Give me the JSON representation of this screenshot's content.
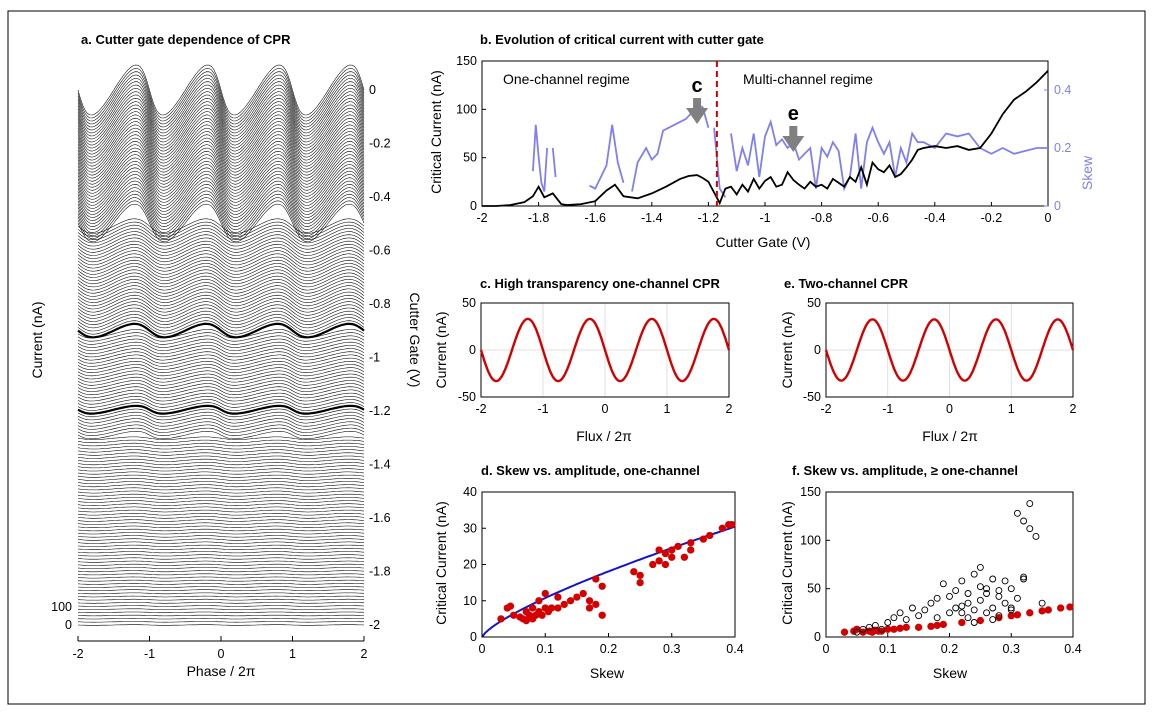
{
  "colors": {
    "accent_red": "#d40000",
    "skew_blue": "#7f7ff2",
    "fit_blue": "#1414c8",
    "frame": "#000000",
    "grey_arrow": "#808080"
  },
  "chart_data": [
    {
      "id": "a",
      "type": "line",
      "title": "a. Cutter gate dependence of CPR",
      "xlabel": "Phase / 2π",
      "ylabel": "Current (nA)",
      "y2label": "Cutter Gate (V)",
      "xlim": [
        -2,
        2
      ],
      "xticks": [
        "-2",
        "-1",
        "0",
        "1",
        "2"
      ],
      "gate_ticks": [
        "0",
        "-0.2",
        "-0.4",
        "-0.6",
        "-0.8",
        "-1",
        "-1.2",
        "-1.4",
        "-1.6",
        "-1.8",
        "-2"
      ],
      "scale_ticks": [
        "100",
        "0"
      ],
      "gate_range": [
        -2,
        0
      ],
      "trace_count": 170,
      "highlighted_gates": [
        -0.9,
        -1.2
      ]
    },
    {
      "id": "b",
      "type": "line",
      "title": "b. Evolution of critical current with cutter gate",
      "xlabel": "Cutter Gate (V)",
      "ylabel": "Critical Current (nA)",
      "y2label": "Skew",
      "xlim": [
        -2,
        0
      ],
      "ylim": [
        0,
        150
      ],
      "y2lim": [
        0,
        0.5
      ],
      "xticks": [
        "-2",
        "-1.8",
        "-1.6",
        "-1.4",
        "-1.2",
        "-1",
        "-0.8",
        "-0.6",
        "-0.4",
        "-0.2",
        "0"
      ],
      "yticks": [
        "0",
        "50",
        "100",
        "150"
      ],
      "y2ticks": [
        "0",
        "0.2",
        "0.4"
      ],
      "divider_x": -1.17,
      "annotations": {
        "left_regime": "One-channel regime",
        "right_regime": "Multi-channel regime",
        "marker_c": "c",
        "marker_e": "e",
        "marker_c_x": -1.24,
        "marker_e_x": -0.9
      },
      "series": [
        {
          "name": "Critical current",
          "x": [
            -2,
            -1.95,
            -1.9,
            -1.85,
            -1.82,
            -1.8,
            -1.78,
            -1.75,
            -1.72,
            -1.7,
            -1.65,
            -1.6,
            -1.56,
            -1.53,
            -1.5,
            -1.45,
            -1.4,
            -1.35,
            -1.3,
            -1.27,
            -1.24,
            -1.22,
            -1.2,
            -1.18,
            -1.16,
            -1.14,
            -1.12,
            -1.1,
            -1.08,
            -1.06,
            -1.04,
            -1.02,
            -1.0,
            -0.98,
            -0.96,
            -0.94,
            -0.92,
            -0.9,
            -0.88,
            -0.86,
            -0.84,
            -0.82,
            -0.8,
            -0.78,
            -0.76,
            -0.74,
            -0.72,
            -0.7,
            -0.68,
            -0.66,
            -0.64,
            -0.62,
            -0.6,
            -0.58,
            -0.56,
            -0.54,
            -0.52,
            -0.5,
            -0.48,
            -0.46,
            -0.44,
            -0.4,
            -0.36,
            -0.32,
            -0.28,
            -0.24,
            -0.2,
            -0.16,
            -0.12,
            -0.08,
            -0.04,
            0
          ],
          "values": [
            0,
            0,
            1,
            4,
            10,
            20,
            9,
            13,
            2,
            1,
            2,
            5,
            16,
            22,
            10,
            8,
            13,
            20,
            28,
            31,
            32,
            29,
            25,
            14,
            3,
            18,
            20,
            12,
            22,
            15,
            28,
            18,
            26,
            30,
            20,
            22,
            35,
            27,
            22,
            18,
            25,
            20,
            22,
            18,
            28,
            24,
            20,
            30,
            25,
            40,
            22,
            45,
            38,
            35,
            42,
            30,
            33,
            40,
            48,
            58,
            60,
            62,
            60,
            62,
            58,
            60,
            75,
            95,
            110,
            118,
            128,
            140
          ]
        },
        {
          "name": "Skew",
          "segments": [
            {
              "x": [
                -1.82,
                -1.81,
                -1.8,
                -1.79,
                -1.78,
                -1.77
              ],
              "values": [
                0.12,
                0.28,
                0.17,
                0.08,
                0.05,
                0.2
              ]
            },
            {
              "x": [
                -1.75,
                -1.74
              ],
              "values": [
                0.2,
                0.1
              ]
            },
            {
              "x": [
                -1.62,
                -1.6,
                -1.58,
                -1.56,
                -1.54,
                -1.52,
                -1.5
              ],
              "values": [
                0.07,
                0.06,
                0.1,
                0.14,
                0.28,
                0.15,
                0.08
              ]
            },
            {
              "x": [
                -1.47,
                -1.45,
                -1.42,
                -1.4,
                -1.38,
                -1.36,
                -1.34,
                -1.32,
                -1.3,
                -1.28,
                -1.26,
                -1.24,
                -1.22,
                -1.2
              ],
              "values": [
                0.05,
                0.15,
                0.2,
                0.16,
                0.18,
                0.26,
                0.27,
                0.28,
                0.29,
                0.3,
                0.32,
                0.35,
                0.34,
                0.27
              ]
            },
            {
              "x": [
                -1.18,
                -1.16,
                -1.14
              ],
              "values": [
                0.27,
                0.06,
                0.03
              ]
            },
            {
              "x": [
                -1.12,
                -1.1,
                -1.08,
                -1.06,
                -1.04,
                -1.02,
                -1.0,
                -0.98,
                -0.96,
                -0.94,
                -0.92,
                -0.9,
                -0.88,
                -0.86,
                -0.84,
                -0.82,
                -0.8,
                -0.78,
                -0.76,
                -0.74,
                -0.72,
                -0.7,
                -0.68,
                -0.66,
                -0.64,
                -0.62,
                -0.6,
                -0.58,
                -0.56,
                -0.54,
                -0.52,
                -0.5,
                -0.48,
                -0.46,
                -0.44,
                -0.4,
                -0.36,
                -0.32,
                -0.28,
                -0.24,
                -0.2,
                -0.16,
                -0.12,
                -0.08,
                -0.04,
                0
              ],
              "values": [
                0.25,
                0.12,
                0.2,
                0.14,
                0.25,
                0.1,
                0.24,
                0.29,
                0.21,
                0.23,
                0.2,
                0.22,
                0.16,
                0.18,
                0.2,
                0.06,
                0.2,
                0.17,
                0.22,
                0.19,
                0.06,
                0.1,
                0.25,
                0.06,
                0.22,
                0.27,
                0.22,
                0.18,
                0.22,
                0.1,
                0.2,
                0.15,
                0.25,
                0.22,
                0.22,
                0.2,
                0.25,
                0.24,
                0.25,
                0.2,
                0.18,
                0.2,
                0.18,
                0.19,
                0.2,
                0.2
              ]
            }
          ]
        }
      ]
    },
    {
      "id": "c",
      "type": "line",
      "title": "c. High transparency one-channel CPR",
      "xlabel": "Flux / 2π",
      "ylabel": "Current (nA)",
      "xlim": [
        -2,
        2
      ],
      "ylim": [
        -50,
        50
      ],
      "xticks": [
        "-2",
        "-1",
        "0",
        "1",
        "2"
      ],
      "yticks": [
        "50",
        "0",
        "-50"
      ],
      "amplitude": 32,
      "skew": 0.36
    },
    {
      "id": "e",
      "type": "line",
      "title": "e. Two-channel CPR",
      "xlabel": "Flux / 2π",
      "ylabel": "Current (nA)",
      "xlim": [
        -2,
        2
      ],
      "ylim": [
        -50,
        50
      ],
      "xticks": [
        "-2",
        "-1",
        "0",
        "1",
        "2"
      ],
      "yticks": [
        "50",
        "0",
        "-50"
      ],
      "amplitude": 32,
      "skew": 0.26
    },
    {
      "id": "d",
      "type": "scatter",
      "title": "d. Skew vs. amplitude, one-channel",
      "xlabel": "Skew",
      "ylabel": "Critical Current (nA)",
      "xlim": [
        0,
        0.4
      ],
      "ylim": [
        0,
        40
      ],
      "xticks": [
        "0",
        "0.1",
        "0.2",
        "0.3",
        "0.4"
      ],
      "yticks": [
        "0",
        "10",
        "20",
        "30",
        "40"
      ],
      "fit": {
        "name": "fit",
        "form": "I = 60.5 * s^0.75"
      },
      "series": [
        {
          "name": "one-channel",
          "x": [
            0.03,
            0.04,
            0.045,
            0.05,
            0.06,
            0.065,
            0.07,
            0.07,
            0.075,
            0.08,
            0.08,
            0.085,
            0.09,
            0.09,
            0.095,
            0.1,
            0.1,
            0.105,
            0.11,
            0.12,
            0.12,
            0.13,
            0.14,
            0.15,
            0.16,
            0.17,
            0.17,
            0.18,
            0.18,
            0.19,
            0.19,
            0.24,
            0.25,
            0.25,
            0.27,
            0.28,
            0.28,
            0.29,
            0.29,
            0.3,
            0.3,
            0.31,
            0.32,
            0.33,
            0.33,
            0.35,
            0.36,
            0.38,
            0.39,
            0.395
          ],
          "values": [
            5,
            8,
            8.5,
            6,
            5.5,
            5,
            7,
            4.5,
            6,
            5,
            8,
            6,
            7,
            10,
            6,
            8,
            12,
            7,
            8,
            8,
            11,
            9,
            10,
            11,
            12,
            8,
            10,
            9,
            16,
            14,
            6,
            18,
            17,
            15,
            20,
            24,
            21,
            20,
            23,
            22,
            24,
            25,
            22,
            24,
            26,
            27,
            28,
            30,
            31,
            31
          ]
        }
      ]
    },
    {
      "id": "f",
      "type": "scatter",
      "title": "f. Skew vs. amplitude, ≥ one-channel",
      "xlabel": "Skew",
      "ylabel": "Critical Current (nA)",
      "xlim": [
        0,
        0.4
      ],
      "ylim": [
        0,
        150
      ],
      "xticks": [
        "0",
        "0.1",
        "0.2",
        "0.3",
        "0.4"
      ],
      "yticks": [
        "0",
        "50",
        "100",
        "150"
      ],
      "series": [
        {
          "name": "one-channel",
          "x": [
            0.03,
            0.045,
            0.05,
            0.06,
            0.07,
            0.075,
            0.08,
            0.085,
            0.09,
            0.1,
            0.11,
            0.12,
            0.13,
            0.15,
            0.17,
            0.18,
            0.19,
            0.22,
            0.25,
            0.28,
            0.3,
            0.31,
            0.33,
            0.35,
            0.36,
            0.38,
            0.395
          ],
          "values": [
            5,
            6,
            8,
            5,
            6,
            5,
            7,
            6,
            6,
            8,
            8,
            9,
            10,
            10,
            11,
            12,
            13,
            15,
            17,
            20,
            22,
            23,
            25,
            27,
            28,
            30,
            31
          ]
        },
        {
          "name": "multi-channel",
          "x": [
            0.05,
            0.06,
            0.07,
            0.08,
            0.09,
            0.1,
            0.11,
            0.12,
            0.13,
            0.14,
            0.15,
            0.16,
            0.17,
            0.18,
            0.19,
            0.2,
            0.2,
            0.21,
            0.21,
            0.22,
            0.22,
            0.23,
            0.23,
            0.23,
            0.24,
            0.24,
            0.25,
            0.25,
            0.26,
            0.26,
            0.27,
            0.27,
            0.28,
            0.28,
            0.29,
            0.29,
            0.3,
            0.3,
            0.31,
            0.31,
            0.32,
            0.32,
            0.33,
            0.33,
            0.34,
            0.35,
            0.18,
            0.22,
            0.25,
            0.27,
            0.3,
            0.24,
            0.26,
            0.28,
            0.32
          ],
          "values": [
            5,
            8,
            10,
            12,
            8,
            15,
            20,
            25,
            18,
            30,
            22,
            28,
            35,
            20,
            55,
            25,
            42,
            30,
            48,
            32,
            58,
            20,
            35,
            45,
            28,
            65,
            38,
            52,
            25,
            45,
            30,
            60,
            22,
            48,
            35,
            58,
            28,
            50,
            40,
            128,
            62,
            120,
            138,
            112,
            104,
            35,
            40,
            25,
            72,
            18,
            30,
            15,
            50,
            42,
            60
          ]
        }
      ]
    }
  ]
}
